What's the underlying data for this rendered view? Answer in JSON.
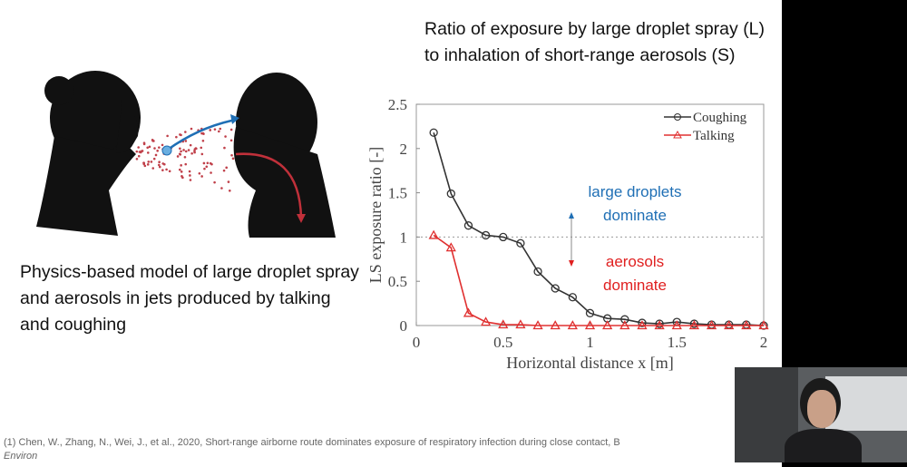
{
  "slide": {
    "title": "Ratio of exposure by large droplet spray (L) to inhalation of short-range aerosols (S)",
    "caption": "Physics-based model of large droplet spray and aerosols in jets produced by talking and coughing",
    "reference": "(1) Chen, W., Zhang, N., Wei, J., et al., 2020, Short-range airborne route dominates exposure of respiratory infection during close contact, B",
    "reference_cont": "Environ"
  },
  "chart_data": {
    "type": "line",
    "xlabel": "Horizontal distance x [m]",
    "ylabel": "LS exposure ratio [-]",
    "xlim": [
      0,
      2
    ],
    "ylim": [
      0,
      2.5
    ],
    "xticks": [
      "0",
      "0.5",
      "1",
      "1.5",
      "2"
    ],
    "yticks": [
      "0",
      "0.5",
      "1",
      "1.5",
      "2",
      "2.5"
    ],
    "x": [
      0.1,
      0.2,
      0.3,
      0.4,
      0.5,
      0.6,
      0.7,
      0.8,
      0.9,
      1.0,
      1.1,
      1.2,
      1.3,
      1.4,
      1.5,
      1.6,
      1.7,
      1.8,
      1.9,
      2.0
    ],
    "series": [
      {
        "name": "Coughing",
        "color": "#333333",
        "marker": "circle",
        "values": [
          2.18,
          1.49,
          1.13,
          1.02,
          1.0,
          0.93,
          0.61,
          0.42,
          0.32,
          0.14,
          0.08,
          0.07,
          0.03,
          0.02,
          0.04,
          0.02,
          0.01,
          0.01,
          0.01,
          0.0
        ]
      },
      {
        "name": "Talking",
        "color": "#e03030",
        "marker": "triangle",
        "values": [
          1.02,
          0.88,
          0.14,
          0.04,
          0.01,
          0.01,
          0,
          0,
          0,
          0,
          0,
          0,
          0,
          0,
          0,
          0,
          0,
          0,
          0,
          0
        ]
      }
    ],
    "reference_line": 1,
    "legend": "top-right",
    "grid": false,
    "annotations": [
      {
        "text": [
          "large droplets",
          "dominate"
        ],
        "color": "#1f6fb5"
      },
      {
        "text": [
          "aerosols",
          "dominate"
        ],
        "color": "#e02020"
      }
    ]
  }
}
